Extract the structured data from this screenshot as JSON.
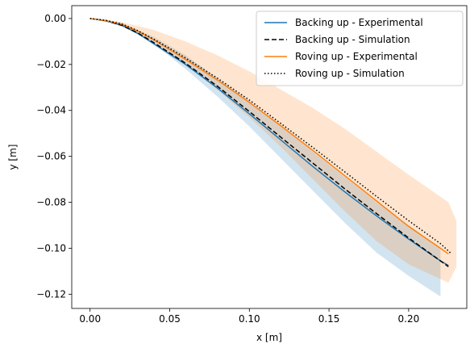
{
  "chart_data": {
    "type": "line",
    "title": "",
    "xlabel": "x [m]",
    "ylabel": "y [m]",
    "xlim": [
      -0.0115,
      0.2365
    ],
    "ylim": [
      -0.1262,
      0.0056
    ],
    "grid": false,
    "legend_position": "top-right",
    "xticks": [
      0.0,
      0.05,
      0.1,
      0.15,
      0.2
    ],
    "xtick_labels": [
      "0.00",
      "0.05",
      "0.10",
      "0.15",
      "0.20"
    ],
    "yticks": [
      0.0,
      -0.02,
      -0.04,
      -0.06,
      -0.08,
      -0.1,
      -0.12
    ],
    "ytick_labels": [
      "0.00",
      "−0.02",
      "−0.04",
      "−0.06",
      "−0.08",
      "−0.10",
      "−0.12"
    ],
    "bands": [
      {
        "series": "Backing up - Experimental",
        "color": "#1f77b4",
        "opacity": 0.2,
        "x": [
          0.0,
          0.02,
          0.04,
          0.06,
          0.08,
          0.1,
          0.12,
          0.14,
          0.16,
          0.18,
          0.2,
          0.22
        ],
        "upper": [
          0.0,
          -0.002,
          -0.008,
          -0.016,
          -0.026,
          -0.036,
          -0.047,
          -0.058,
          -0.069,
          -0.08,
          -0.09,
          -0.1
        ],
        "lower": [
          0.0,
          -0.003,
          -0.011,
          -0.022,
          -0.034,
          -0.047,
          -0.061,
          -0.075,
          -0.089,
          -0.102,
          -0.112,
          -0.121
        ]
      },
      {
        "series": "Roving up - Experimental",
        "color": "#ff7f0e",
        "opacity": 0.2,
        "x": [
          0.0,
          0.02,
          0.04,
          0.06,
          0.08,
          0.1,
          0.12,
          0.14,
          0.16,
          0.18,
          0.2,
          0.225,
          0.23
        ],
        "upper": [
          0.0,
          -0.0015,
          -0.005,
          -0.01,
          -0.016,
          -0.023,
          -0.031,
          -0.039,
          -0.048,
          -0.058,
          -0.068,
          -0.08,
          -0.088
        ],
        "lower": [
          0.0,
          -0.003,
          -0.01,
          -0.02,
          -0.031,
          -0.043,
          -0.056,
          -0.07,
          -0.084,
          -0.097,
          -0.107,
          -0.115,
          -0.108
        ]
      }
    ],
    "series": [
      {
        "name": "Backing up - Experimental",
        "color": "#1f77b4",
        "style": "solid",
        "x": [
          0.0,
          0.01,
          0.02,
          0.03,
          0.04,
          0.05,
          0.06,
          0.08,
          0.1,
          0.12,
          0.14,
          0.16,
          0.18,
          0.2,
          0.22,
          0.225
        ],
        "y": [
          0.0,
          -0.001,
          -0.003,
          -0.0065,
          -0.011,
          -0.0155,
          -0.02,
          -0.0303,
          -0.0415,
          -0.053,
          -0.0645,
          -0.0755,
          -0.086,
          -0.096,
          -0.1055,
          -0.1075
        ]
      },
      {
        "name": "Backing up - Simulation",
        "color": "#000000",
        "style": "dashed",
        "x": [
          0.0,
          0.01,
          0.02,
          0.03,
          0.04,
          0.05,
          0.06,
          0.08,
          0.1,
          0.12,
          0.14,
          0.16,
          0.18,
          0.2,
          0.22,
          0.225
        ],
        "y": [
          0.0,
          -0.0009,
          -0.003,
          -0.0063,
          -0.0105,
          -0.015,
          -0.0195,
          -0.0295,
          -0.0405,
          -0.0518,
          -0.063,
          -0.0742,
          -0.085,
          -0.0955,
          -0.1055,
          -0.108
        ]
      },
      {
        "name": "Roving up - Experimental",
        "color": "#ff7f0e",
        "style": "solid",
        "x": [
          0.0,
          0.01,
          0.02,
          0.03,
          0.04,
          0.05,
          0.06,
          0.08,
          0.1,
          0.12,
          0.14,
          0.16,
          0.18,
          0.2,
          0.22,
          0.225
        ],
        "y": [
          0.0,
          -0.0009,
          -0.0025,
          -0.0055,
          -0.0093,
          -0.0135,
          -0.0178,
          -0.0268,
          -0.0365,
          -0.0468,
          -0.0575,
          -0.0685,
          -0.0795,
          -0.0905,
          -0.1,
          -0.1025
        ]
      },
      {
        "name": "Roving up - Simulation",
        "color": "#000000",
        "style": "dotted",
        "x": [
          0.0,
          0.01,
          0.02,
          0.03,
          0.04,
          0.05,
          0.06,
          0.08,
          0.1,
          0.12,
          0.14,
          0.16,
          0.18,
          0.2,
          0.22,
          0.227
        ],
        "y": [
          0.0,
          -0.0008,
          -0.0024,
          -0.0053,
          -0.009,
          -0.013,
          -0.0172,
          -0.026,
          -0.0355,
          -0.0458,
          -0.0562,
          -0.0668,
          -0.0775,
          -0.088,
          -0.098,
          -0.1025
        ]
      }
    ]
  }
}
